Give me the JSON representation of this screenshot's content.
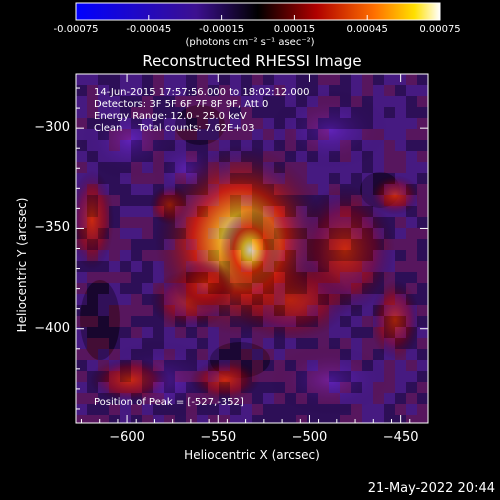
{
  "colorbar": {
    "tick_labels": [
      "-0.00075",
      "-0.00045",
      "-0.00015",
      "0.00015",
      "0.00045",
      "0.00075"
    ],
    "range": [
      -0.00075,
      0.00075
    ],
    "unit_label": "(photons cm⁻² s⁻¹ asec⁻²)"
  },
  "title": "Reconstructed RHESSI Image",
  "annotations": {
    "time": "14-Jun-2015 17:57:56.000 to 18:02:12.000",
    "detectors": "Detectors: 3F 5F 6F 7F 8F 9F, Att 0",
    "energy": "Energy Range: 12.0 - 25.0 keV",
    "clean": "Clean     Total counts: 7.62E+03",
    "peak": "Position of Peak = [-527,-352]"
  },
  "axes": {
    "xlabel": "Heliocentric X (arcsec)",
    "ylabel": "Heliocentric Y (arcsec)",
    "xticks": [
      "-600",
      "-550",
      "-500",
      "-450"
    ],
    "yticks": [
      "-300",
      "-350",
      "-400"
    ],
    "xlim": [
      -628,
      -435
    ],
    "ylim": [
      -447,
      -273
    ]
  },
  "footer": {
    "date": "21-May-2022 20:44"
  },
  "peak": {
    "x": -527,
    "y": -352
  },
  "colors": {
    "bg": "#000000",
    "fg": "#ffffff",
    "min": "#0000ff",
    "mid": "#000000",
    "max": "#ffffff"
  }
}
